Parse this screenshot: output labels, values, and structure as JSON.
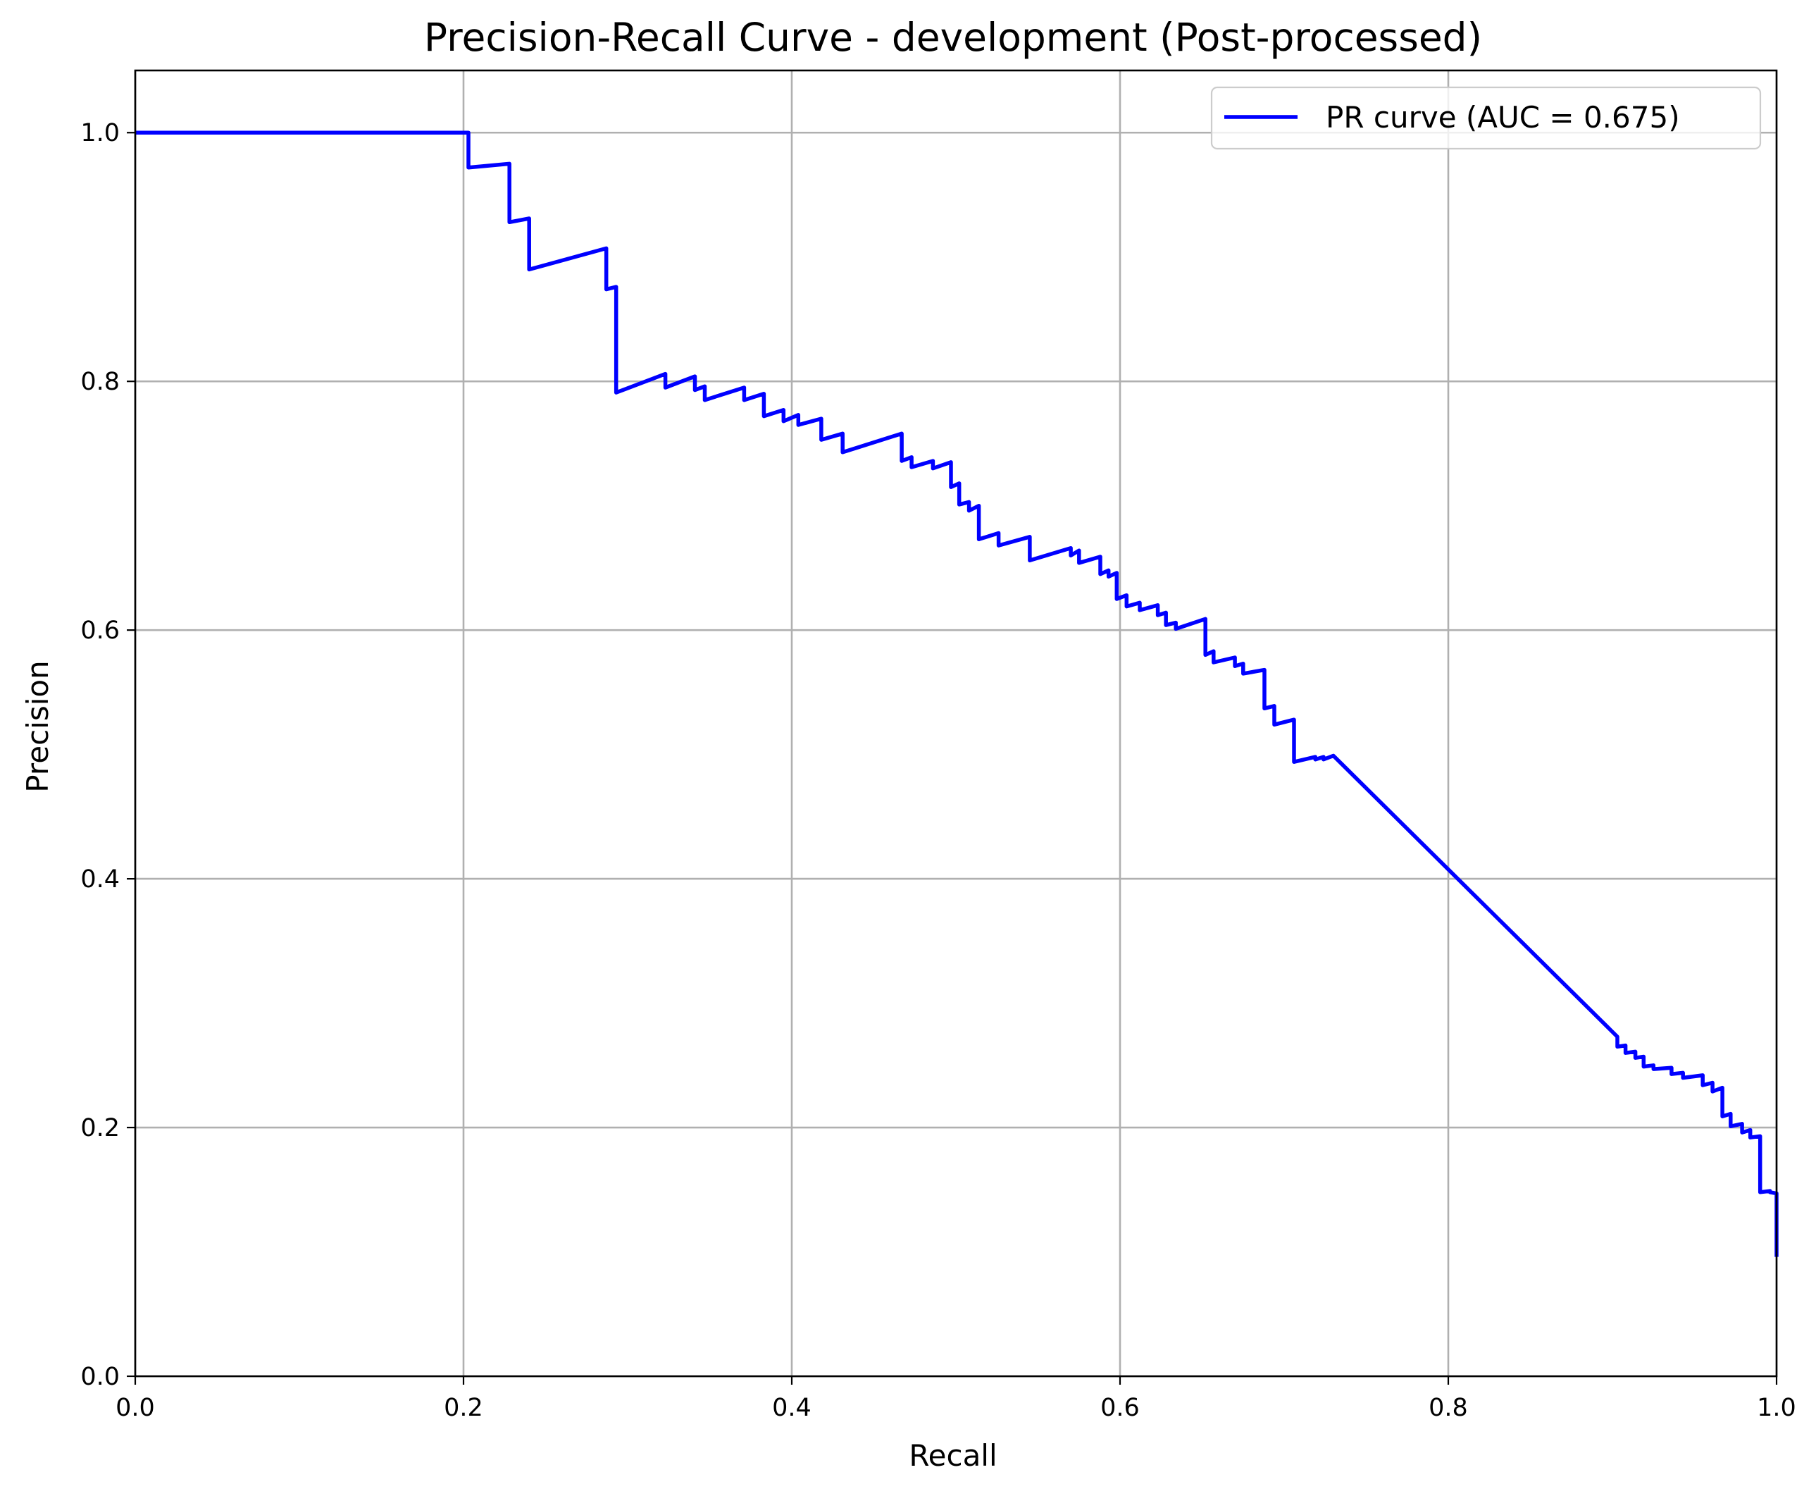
{
  "chart_data": {
    "type": "line",
    "title": "Precision-Recall Curve - development (Post-processed)",
    "xlabel": "Recall",
    "ylabel": "Precision",
    "xlim": [
      0.0,
      1.0
    ],
    "ylim": [
      0.0,
      1.05
    ],
    "xticks": [
      "0.0",
      "0.2",
      "0.4",
      "0.6",
      "0.8",
      "1.0"
    ],
    "yticks": [
      "0.0",
      "0.2",
      "0.4",
      "0.6",
      "0.8",
      "1.0"
    ],
    "xtick_values": [
      0.0,
      0.2,
      0.4,
      0.6,
      0.8,
      1.0
    ],
    "ytick_values": [
      0.0,
      0.2,
      0.4,
      0.6,
      0.8,
      1.0
    ],
    "grid": true,
    "legend": {
      "position": "top-right"
    },
    "series": [
      {
        "name": "PR curve (AUC = 0.675)",
        "color": "#0000ff",
        "points": [
          [
            0.0,
            1.0
          ],
          [
            0.203,
            1.0
          ],
          [
            0.203,
            0.972
          ],
          [
            0.228,
            0.975
          ],
          [
            0.228,
            0.928
          ],
          [
            0.24,
            0.931
          ],
          [
            0.24,
            0.89
          ],
          [
            0.287,
            0.907
          ],
          [
            0.287,
            0.874
          ],
          [
            0.293,
            0.876
          ],
          [
            0.293,
            0.791
          ],
          [
            0.323,
            0.806
          ],
          [
            0.323,
            0.795
          ],
          [
            0.341,
            0.804
          ],
          [
            0.341,
            0.793
          ],
          [
            0.347,
            0.796
          ],
          [
            0.347,
            0.785
          ],
          [
            0.371,
            0.795
          ],
          [
            0.371,
            0.785
          ],
          [
            0.383,
            0.79
          ],
          [
            0.383,
            0.772
          ],
          [
            0.395,
            0.777
          ],
          [
            0.395,
            0.768
          ],
          [
            0.404,
            0.773
          ],
          [
            0.404,
            0.765
          ],
          [
            0.418,
            0.77
          ],
          [
            0.418,
            0.753
          ],
          [
            0.431,
            0.758
          ],
          [
            0.431,
            0.743
          ],
          [
            0.467,
            0.758
          ],
          [
            0.467,
            0.736
          ],
          [
            0.473,
            0.739
          ],
          [
            0.473,
            0.731
          ],
          [
            0.486,
            0.736
          ],
          [
            0.486,
            0.73
          ],
          [
            0.497,
            0.735
          ],
          [
            0.497,
            0.715
          ],
          [
            0.502,
            0.718
          ],
          [
            0.502,
            0.701
          ],
          [
            0.508,
            0.703
          ],
          [
            0.508,
            0.696
          ],
          [
            0.514,
            0.7
          ],
          [
            0.514,
            0.673
          ],
          [
            0.526,
            0.678
          ],
          [
            0.526,
            0.668
          ],
          [
            0.545,
            0.675
          ],
          [
            0.545,
            0.656
          ],
          [
            0.57,
            0.666
          ],
          [
            0.57,
            0.66
          ],
          [
            0.575,
            0.664
          ],
          [
            0.575,
            0.654
          ],
          [
            0.588,
            0.659
          ],
          [
            0.588,
            0.645
          ],
          [
            0.593,
            0.648
          ],
          [
            0.593,
            0.643
          ],
          [
            0.598,
            0.646
          ],
          [
            0.598,
            0.625
          ],
          [
            0.604,
            0.628
          ],
          [
            0.604,
            0.619
          ],
          [
            0.612,
            0.622
          ],
          [
            0.612,
            0.616
          ],
          [
            0.623,
            0.62
          ],
          [
            0.623,
            0.612
          ],
          [
            0.628,
            0.614
          ],
          [
            0.628,
            0.604
          ],
          [
            0.634,
            0.606
          ],
          [
            0.634,
            0.601
          ],
          [
            0.652,
            0.609
          ],
          [
            0.652,
            0.58
          ],
          [
            0.657,
            0.583
          ],
          [
            0.657,
            0.574
          ],
          [
            0.67,
            0.578
          ],
          [
            0.67,
            0.571
          ],
          [
            0.675,
            0.573
          ],
          [
            0.675,
            0.565
          ],
          [
            0.688,
            0.568
          ],
          [
            0.688,
            0.537
          ],
          [
            0.694,
            0.539
          ],
          [
            0.694,
            0.524
          ],
          [
            0.706,
            0.528
          ],
          [
            0.706,
            0.494
          ],
          [
            0.719,
            0.498
          ],
          [
            0.719,
            0.496
          ],
          [
            0.724,
            0.498
          ],
          [
            0.724,
            0.496
          ],
          [
            0.73,
            0.499
          ],
          [
            0.903,
            0.273
          ],
          [
            0.903,
            0.265
          ],
          [
            0.908,
            0.266
          ],
          [
            0.908,
            0.26
          ],
          [
            0.914,
            0.261
          ],
          [
            0.914,
            0.256
          ],
          [
            0.919,
            0.257
          ],
          [
            0.919,
            0.249
          ],
          [
            0.925,
            0.25
          ],
          [
            0.925,
            0.247
          ],
          [
            0.936,
            0.248
          ],
          [
            0.936,
            0.243
          ],
          [
            0.943,
            0.244
          ],
          [
            0.943,
            0.24
          ],
          [
            0.955,
            0.242
          ],
          [
            0.955,
            0.234
          ],
          [
            0.961,
            0.236
          ],
          [
            0.961,
            0.229
          ],
          [
            0.967,
            0.232
          ],
          [
            0.967,
            0.209
          ],
          [
            0.972,
            0.211
          ],
          [
            0.972,
            0.201
          ],
          [
            0.979,
            0.203
          ],
          [
            0.979,
            0.196
          ],
          [
            0.984,
            0.198
          ],
          [
            0.984,
            0.192
          ],
          [
            0.99,
            0.193
          ],
          [
            0.99,
            0.148
          ],
          [
            0.996,
            0.149
          ],
          [
            0.996,
            0.148
          ],
          [
            1.0,
            0.147
          ],
          [
            1.0,
            0.096
          ]
        ]
      }
    ]
  }
}
